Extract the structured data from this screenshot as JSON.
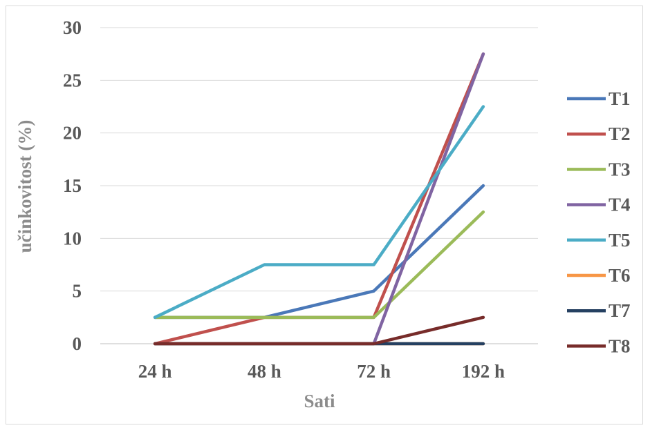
{
  "chart_data": {
    "type": "line",
    "xlabel": "Sati",
    "ylabel": "učinkovitost (%)",
    "categories": [
      "24 h",
      "48 h",
      "72 h",
      "192 h"
    ],
    "ylim": [
      0,
      30
    ],
    "yticks": [
      0,
      5,
      10,
      15,
      20,
      25,
      30
    ],
    "grid": true,
    "legend_position": "right",
    "series": [
      {
        "name": "T1",
        "color": "#4a78b8",
        "values": [
          2.5,
          2.5,
          5,
          15
        ]
      },
      {
        "name": "T2",
        "color": "#c0504d",
        "values": [
          0,
          2.5,
          2.5,
          27.5
        ]
      },
      {
        "name": "T3",
        "color": "#9bbb59",
        "values": [
          2.5,
          2.5,
          2.5,
          12.5
        ]
      },
      {
        "name": "T4",
        "color": "#8064a2",
        "values": [
          0,
          0,
          0,
          27.5
        ]
      },
      {
        "name": "T5",
        "color": "#4bacc6",
        "values": [
          2.5,
          7.5,
          7.5,
          22.5
        ]
      },
      {
        "name": "T6",
        "color": "#f79646",
        "values": [
          0,
          0,
          0,
          0
        ]
      },
      {
        "name": "T7",
        "color": "#254061",
        "values": [
          0,
          0,
          0,
          0
        ]
      },
      {
        "name": "T8",
        "color": "#772c2a",
        "values": [
          0,
          0,
          0,
          2.5
        ]
      }
    ]
  }
}
